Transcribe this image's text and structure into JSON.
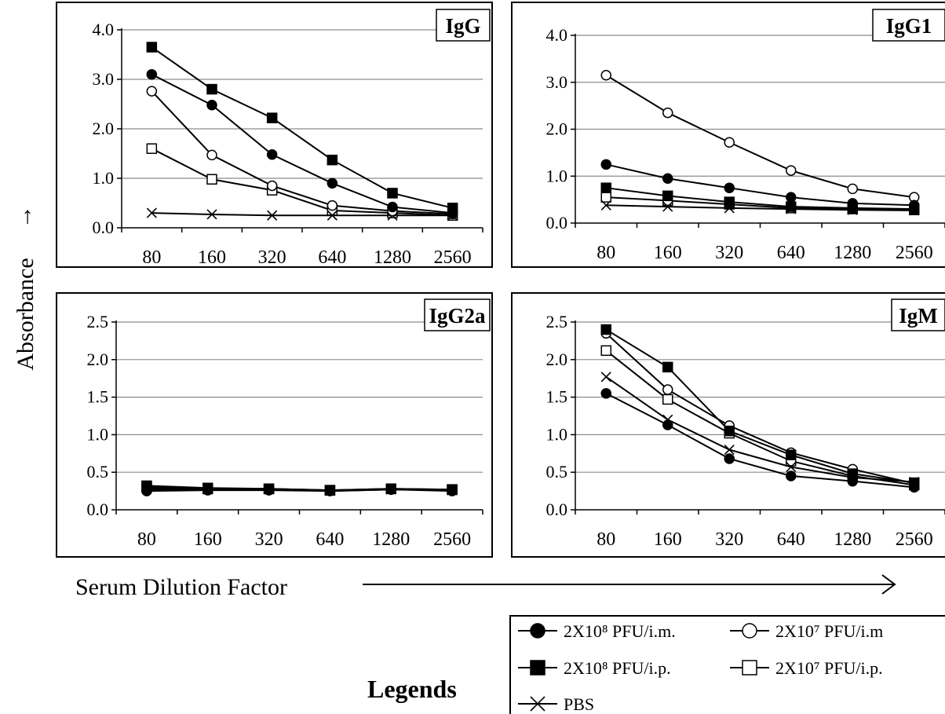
{
  "figure": {
    "ylabel": "Absorbance",
    "ylabel_arrow": "→",
    "xlabel": "Serum Dilution Factor",
    "legend_title": "Legends",
    "legend": [
      {
        "label": "2X10⁸ PFU/i.m.",
        "marker": "filled-circle"
      },
      {
        "label": "2X10⁷ PFU/i.m",
        "marker": "open-circle"
      },
      {
        "label": "2X10⁸ PFU/i.p.",
        "marker": "filled-square"
      },
      {
        "label": "2X10⁷ PFU/i.p.",
        "marker": "open-square"
      },
      {
        "label": "PBS",
        "marker": "cross"
      }
    ],
    "colors": {
      "line": "#000000",
      "grid": "#8c8c8c",
      "background": "#ffffff"
    }
  },
  "chart_data": [
    {
      "type": "line",
      "title": "IgG",
      "categories": [
        "80",
        "160",
        "320",
        "640",
        "1280",
        "2560"
      ],
      "ylim": [
        0,
        4
      ],
      "yticks": [
        "0.0",
        "1.0",
        "2.0",
        "3.0",
        "4.0"
      ],
      "grid": true,
      "series": [
        {
          "name": "2X10⁸ PFU/i.m.",
          "marker": "filled-circle",
          "values": [
            3.1,
            2.48,
            1.48,
            0.9,
            0.42,
            0.3
          ]
        },
        {
          "name": "2X10⁷ PFU/i.m",
          "marker": "open-circle",
          "values": [
            2.76,
            1.47,
            0.85,
            0.45,
            0.34,
            0.28
          ]
        },
        {
          "name": "2X10⁸ PFU/i.p.",
          "marker": "filled-square",
          "values": [
            3.65,
            2.8,
            2.22,
            1.37,
            0.7,
            0.4
          ]
        },
        {
          "name": "2X10⁷ PFU/i.p.",
          "marker": "open-square",
          "values": [
            1.6,
            0.98,
            0.76,
            0.35,
            0.3,
            0.25
          ]
        },
        {
          "name": "PBS",
          "marker": "cross",
          "values": [
            0.3,
            0.27,
            0.25,
            0.25,
            0.25,
            0.25
          ]
        }
      ]
    },
    {
      "type": "line",
      "title": "IgG1",
      "categories": [
        "80",
        "160",
        "320",
        "640",
        "1280",
        "2560"
      ],
      "ylim": [
        0,
        4
      ],
      "yticks": [
        "0.0",
        "1.0",
        "2.0",
        "3.0",
        "4.0"
      ],
      "grid": true,
      "series": [
        {
          "name": "2X10⁸ PFU/i.m.",
          "marker": "filled-circle",
          "values": [
            1.25,
            0.95,
            0.75,
            0.55,
            0.42,
            0.38
          ]
        },
        {
          "name": "2X10⁷ PFU/i.m",
          "marker": "open-circle",
          "values": [
            3.15,
            2.35,
            1.72,
            1.12,
            0.73,
            0.55
          ]
        },
        {
          "name": "2X10⁸ PFU/i.p.",
          "marker": "filled-square",
          "values": [
            0.75,
            0.58,
            0.45,
            0.35,
            0.32,
            0.3
          ]
        },
        {
          "name": "2X10⁷ PFU/i.p.",
          "marker": "open-square",
          "values": [
            0.55,
            0.48,
            0.4,
            0.32,
            0.3,
            0.28
          ]
        },
        {
          "name": "PBS",
          "marker": "cross",
          "values": [
            0.38,
            0.35,
            0.32,
            0.3,
            0.28,
            0.27
          ]
        }
      ]
    },
    {
      "type": "line",
      "title": "IgG2a",
      "categories": [
        "80",
        "160",
        "320",
        "640",
        "1280",
        "2560"
      ],
      "ylim": [
        0,
        2.5
      ],
      "yticks": [
        "0.0",
        "0.5",
        "1.0",
        "1.5",
        "2.0",
        "2.5"
      ],
      "grid": true,
      "series": [
        {
          "name": "2X10⁸ PFU/i.m.",
          "marker": "filled-circle",
          "values": [
            0.25,
            0.26,
            0.26,
            0.25,
            0.27,
            0.25
          ]
        },
        {
          "name": "2X10⁷ PFU/i.m",
          "marker": "open-circle",
          "values": [
            0.26,
            0.27,
            0.27,
            0.26,
            0.27,
            0.26
          ]
        },
        {
          "name": "2X10⁸ PFU/i.p.",
          "marker": "filled-square",
          "values": [
            0.32,
            0.29,
            0.28,
            0.26,
            0.28,
            0.27
          ]
        },
        {
          "name": "2X10⁷ PFU/i.p.",
          "marker": "open-square",
          "values": [
            0.3,
            0.28,
            0.28,
            0.26,
            0.28,
            0.27
          ]
        },
        {
          "name": "PBS",
          "marker": "cross",
          "values": [
            0.28,
            0.27,
            0.27,
            0.25,
            0.27,
            0.26
          ]
        }
      ]
    },
    {
      "type": "line",
      "title": "IgM",
      "categories": [
        "80",
        "160",
        "320",
        "640",
        "1280",
        "2560"
      ],
      "ylim": [
        0,
        2.5
      ],
      "yticks": [
        "0.0",
        "0.5",
        "1.0",
        "1.5",
        "2.0",
        "2.5"
      ],
      "grid": true,
      "series": [
        {
          "name": "2X10⁸ PFU/i.m.",
          "marker": "filled-circle",
          "values": [
            1.55,
            1.13,
            0.68,
            0.45,
            0.38,
            0.3
          ]
        },
        {
          "name": "2X10⁷ PFU/i.m",
          "marker": "open-circle",
          "values": [
            2.35,
            1.6,
            1.12,
            0.76,
            0.54,
            0.35
          ]
        },
        {
          "name": "2X10⁸ PFU/i.p.",
          "marker": "filled-square",
          "values": [
            2.4,
            1.9,
            1.05,
            0.73,
            0.48,
            0.36
          ]
        },
        {
          "name": "2X10⁷ PFU/i.p.",
          "marker": "open-square",
          "values": [
            2.12,
            1.47,
            1.02,
            0.65,
            0.45,
            0.33
          ]
        },
        {
          "name": "PBS",
          "marker": "cross",
          "values": [
            1.77,
            1.2,
            0.8,
            0.57,
            0.43,
            0.37
          ]
        }
      ]
    }
  ]
}
